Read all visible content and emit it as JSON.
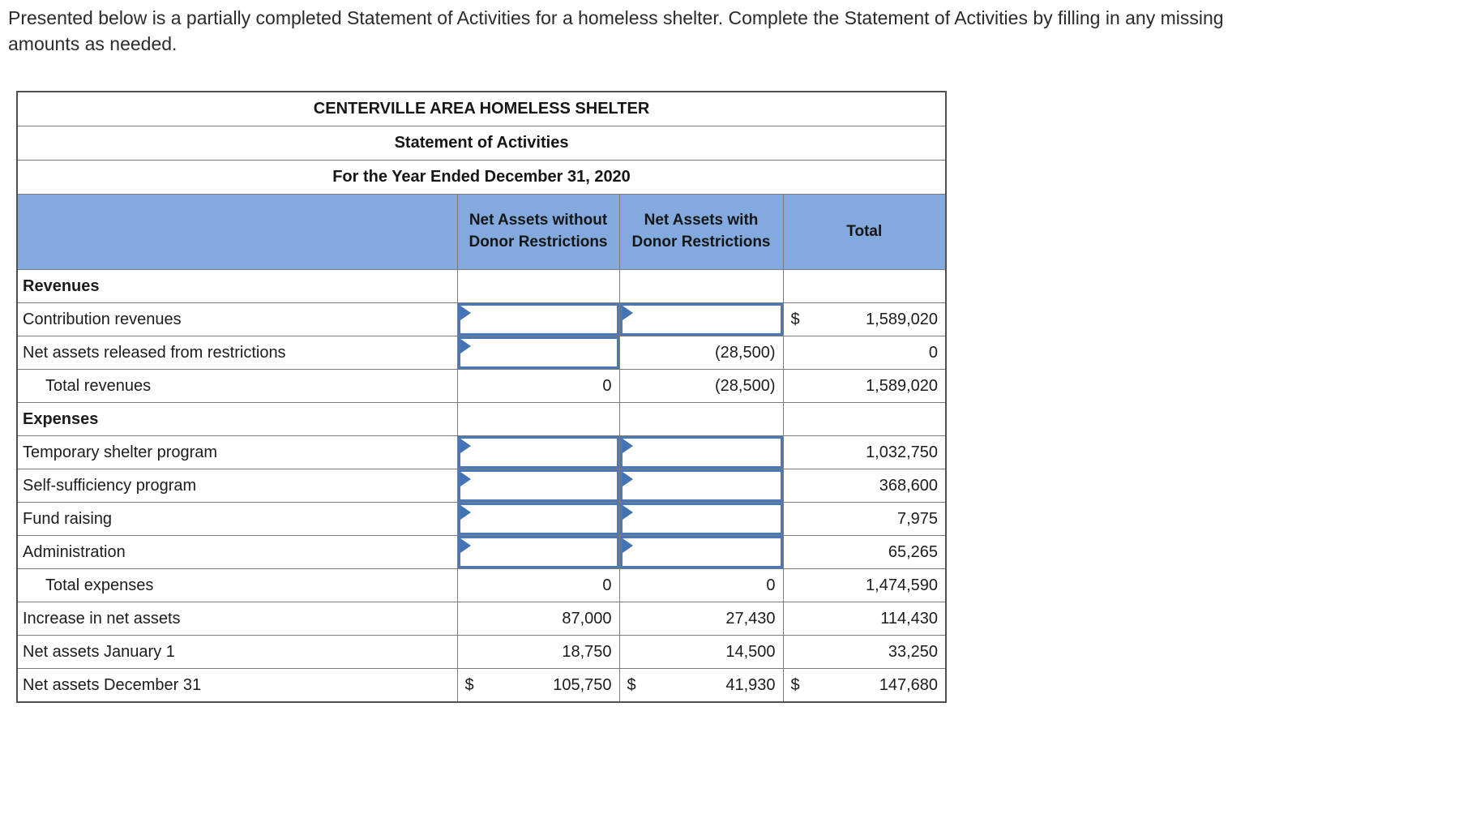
{
  "instructions": "Presented below is a partially completed Statement of Activities for a homeless shelter. Complete the Statement of Activities by filling in any missing amounts as needed.",
  "colors": {
    "header_blue": "#83aade",
    "input_border_blue": "#4a79ba",
    "flag_blue": "#4173b5",
    "gridline_gray": "#7a7a7a"
  },
  "table": {
    "title": "CENTERVILLE AREA HOMELESS SHELTER",
    "subtitle": "Statement of Activities",
    "period": "For the Year Ended December 31, 2020",
    "columns": [
      "Net Assets without Donor Restrictions",
      "Net Assets with Donor Restrictions",
      "Total"
    ],
    "rows": [
      {
        "label": "Revenues",
        "style": "section",
        "cells": [
          {
            "kind": "empty"
          },
          {
            "kind": "empty"
          },
          {
            "kind": "empty"
          }
        ]
      },
      {
        "label": "Contribution revenues",
        "cells": [
          {
            "kind": "input"
          },
          {
            "kind": "input"
          },
          {
            "kind": "value",
            "prefix": "$",
            "text": "1,589,020"
          }
        ]
      },
      {
        "label": "Net assets released from restrictions",
        "cells": [
          {
            "kind": "input"
          },
          {
            "kind": "value",
            "text": "(28,500)"
          },
          {
            "kind": "value",
            "text": "0"
          }
        ]
      },
      {
        "label": "Total revenues",
        "style": "indent",
        "rule_top": true,
        "cells": [
          {
            "kind": "value",
            "text": "0"
          },
          {
            "kind": "value",
            "text": "(28,500)"
          },
          {
            "kind": "value",
            "text": "1,589,020"
          }
        ]
      },
      {
        "label": "Expenses",
        "style": "section",
        "cells": [
          {
            "kind": "empty"
          },
          {
            "kind": "empty"
          },
          {
            "kind": "empty"
          }
        ]
      },
      {
        "label": "Temporary shelter program",
        "cells": [
          {
            "kind": "input"
          },
          {
            "kind": "input"
          },
          {
            "kind": "value",
            "text": "1,032,750"
          }
        ]
      },
      {
        "label": "Self-sufficiency program",
        "cells": [
          {
            "kind": "input"
          },
          {
            "kind": "input"
          },
          {
            "kind": "value",
            "text": "368,600"
          }
        ]
      },
      {
        "label": "Fund raising",
        "cells": [
          {
            "kind": "input"
          },
          {
            "kind": "input"
          },
          {
            "kind": "value",
            "text": "7,975"
          }
        ]
      },
      {
        "label": "Administration",
        "cells": [
          {
            "kind": "input"
          },
          {
            "kind": "input"
          },
          {
            "kind": "value",
            "text": "65,265"
          }
        ]
      },
      {
        "label": "Total expenses",
        "style": "indent",
        "rule_top": true,
        "cells": [
          {
            "kind": "value",
            "text": "0"
          },
          {
            "kind": "value",
            "text": "0"
          },
          {
            "kind": "value",
            "text": "1,474,590"
          }
        ]
      },
      {
        "label": "Increase in net assets",
        "cells": [
          {
            "kind": "value",
            "text": "87,000"
          },
          {
            "kind": "value",
            "text": "27,430"
          },
          {
            "kind": "value",
            "text": "114,430"
          }
        ]
      },
      {
        "label": "Net assets January 1",
        "cells": [
          {
            "kind": "value",
            "text": "18,750"
          },
          {
            "kind": "value",
            "text": "14,500"
          },
          {
            "kind": "value",
            "text": "33,250"
          }
        ]
      },
      {
        "label": "Net assets December 31",
        "rule_top": true,
        "double_bottom": true,
        "cells": [
          {
            "kind": "value",
            "prefix": "$",
            "text": "105,750"
          },
          {
            "kind": "value",
            "prefix": "$",
            "text": "41,930"
          },
          {
            "kind": "value",
            "prefix": "$",
            "text": "147,680"
          }
        ]
      }
    ]
  }
}
